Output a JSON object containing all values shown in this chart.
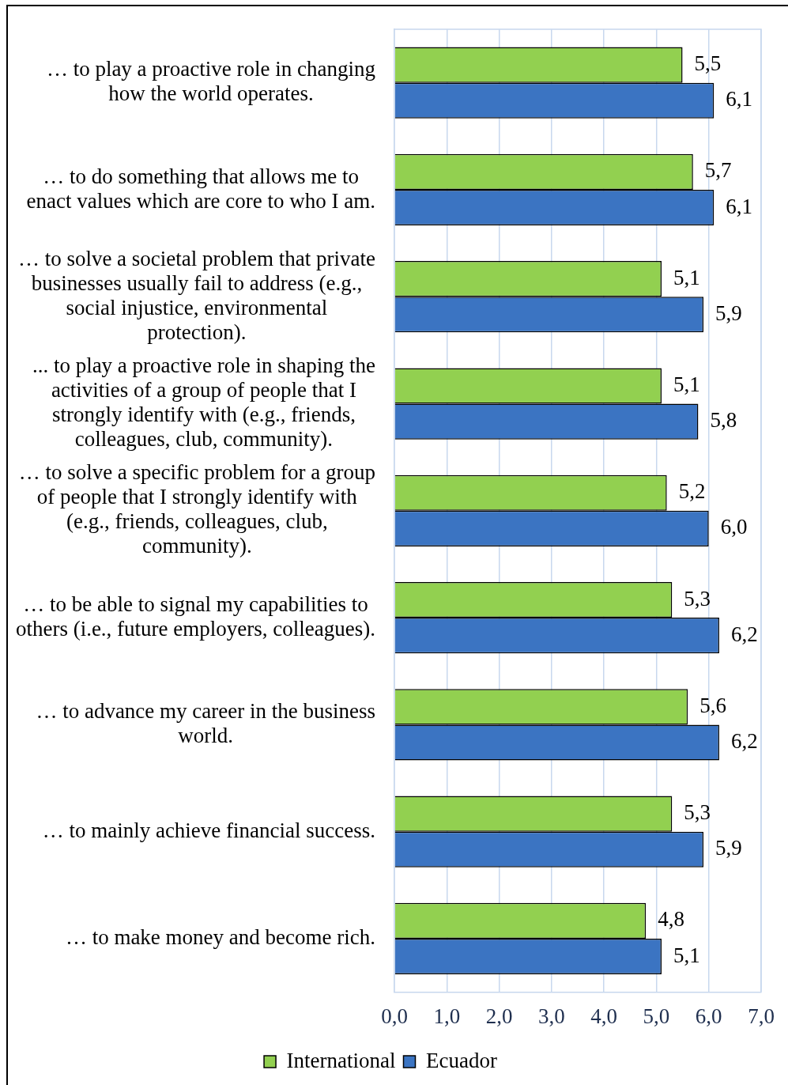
{
  "chart_data": {
    "type": "bar",
    "orientation": "horizontal",
    "categories": [
      "… to play a proactive role in changing how the world operates.",
      "… to do something that allows me to enact values which are core to who I am.",
      "… to solve a societal problem that private businesses usually fail to address (e.g., social injustice, environmental protection).",
      "... to play a proactive role in shaping the activities of a group of people that I strongly identify with (e.g., friends, colleagues, club, community).",
      "… to solve a specific problem for a group of people that I strongly identify with (e.g., friends, colleagues, club, community).",
      "… to be able to signal my capabilities to others (i.e., future employers, colleagues).",
      "… to advance my career in the business world.",
      "… to mainly achieve financial success.",
      "… to make money and become rich."
    ],
    "series": [
      {
        "name": "International",
        "color": "#92d050",
        "values": [
          5.5,
          5.7,
          5.1,
          5.1,
          5.2,
          5.3,
          5.6,
          5.3,
          4.8
        ],
        "value_labels": [
          "5,5",
          "5,7",
          "5,1",
          "5,1",
          "5,2",
          "5,3",
          "5,6",
          "5,3",
          "4,8"
        ]
      },
      {
        "name": "Ecuador",
        "color": "#3b74c2",
        "values": [
          6.1,
          6.1,
          5.9,
          5.8,
          6.0,
          6.2,
          6.2,
          5.9,
          5.1
        ],
        "value_labels": [
          "6,1",
          "6,1",
          "5,9",
          "5,8",
          "6,0",
          "6,2",
          "6,2",
          "5,9",
          "5,1"
        ]
      }
    ],
    "xlim": [
      0,
      7
    ],
    "xticks": [
      {
        "value": 0,
        "label": "0,0"
      },
      {
        "value": 1,
        "label": "1,0"
      },
      {
        "value": 2,
        "label": "2,0"
      },
      {
        "value": 3,
        "label": "3,0"
      },
      {
        "value": 4,
        "label": "4,0"
      },
      {
        "value": 5,
        "label": "5,0"
      },
      {
        "value": 6,
        "label": "6,0"
      },
      {
        "value": 7,
        "label": "7,0"
      }
    ],
    "grid": "x",
    "legend": "bottom"
  }
}
